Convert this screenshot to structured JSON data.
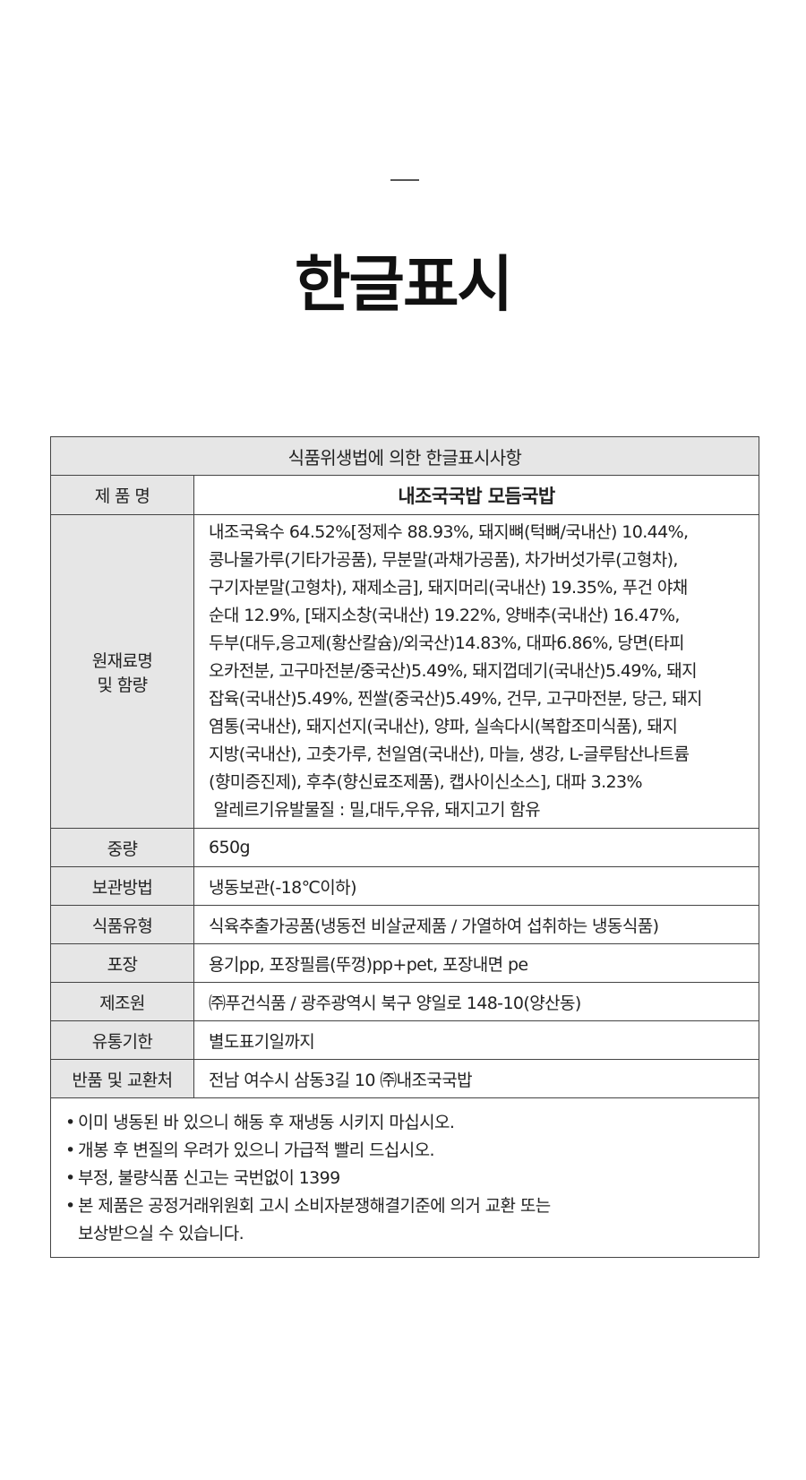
{
  "title": "한글표시",
  "table": {
    "header": "식품위생법에 의한 한글표시사항",
    "rows": [
      {
        "label": "제 품 명",
        "value": "내조국국밥 모듬국밥"
      },
      {
        "label": "원재료명\n및 함량",
        "lines": [
          "내조국육수 64.52%[정제수 88.93%, 돼지뼈(턱뼈/국내산) 10.44%,",
          "콩나물가루(기타가공품), 무분말(과채가공품), 차가버섯가루(고형차),",
          "구기자분말(고형차), 재제소금], 돼지머리(국내산) 19.35%, 푸건 야채",
          "순대 12.9%, [돼지소창(국내산) 19.22%, 양배추(국내산) 16.47%,",
          "두부(대두,응고제(황산칼슘)/외국산)14.83%, 대파6.86%, 당면(타피",
          "오카전분, 고구마전분/중국산)5.49%, 돼지껍데기(국내산)5.49%, 돼지",
          "잡육(국내산)5.49%, 찐쌀(중국산)5.49%, 건무, 고구마전분, 당근, 돼지",
          "염통(국내산), 돼지선지(국내산), 양파, 실속다시(복합조미식품), 돼지",
          "지방(국내산), 고춧가루, 천일염(국내산), 마늘, 생강, L-글루탐산나트륨",
          "(향미증진제), 후추(향신료조제품), 캡사이신소스], 대파 3.23%",
          " 알레르기유발물질 : 밀,대두,우유, 돼지고기 함유"
        ]
      },
      {
        "label": "중량",
        "value": "650g"
      },
      {
        "label": "보관방법",
        "value": "냉동보관(-18℃이하)"
      },
      {
        "label": "식품유형",
        "value": "식육추출가공품(냉동전 비살균제품 / 가열하여 섭취하는 냉동식품)"
      },
      {
        "label": "포장",
        "value": "용기pp, 포장필름(뚜껑)pp+pet, 포장내면 pe"
      },
      {
        "label": "제조원",
        "value": "㈜푸건식품 / 광주광역시 북구 양일로 148-10(양산동)"
      },
      {
        "label": "유통기한",
        "value": "별도표기일까지"
      },
      {
        "label": "반품 및 교환처",
        "value": "전남 여수시 삼동3길 10 ㈜내조국국밥"
      }
    ],
    "notes": [
      "이미 냉동된 바 있으니 해동 후 재냉동 시키지 마십시오.",
      "개봉 후 변질의 우려가 있으니 가급적 빨리 드십시오.",
      "부정, 불량식품 신고는 국번없이 1399",
      "본 제품은 공정거래위원회 고시 소비자분쟁해결기준에 의거 교환 또는\n보상받으실 수 있습니다."
    ]
  }
}
